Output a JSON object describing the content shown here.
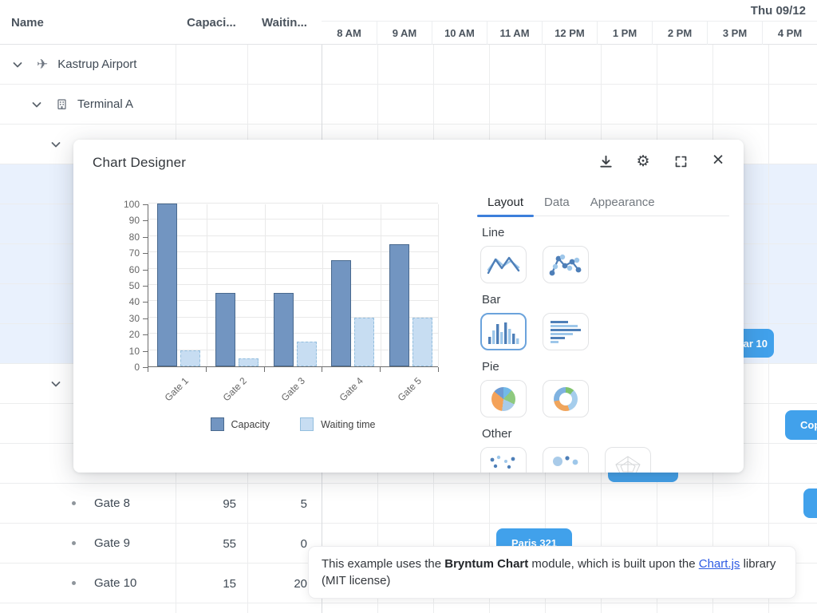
{
  "grid": {
    "columns": [
      {
        "label": "Name"
      },
      {
        "label": "Capaci..."
      },
      {
        "label": "Waitin..."
      }
    ],
    "timeline": {
      "date_label": "Thu 09/12",
      "hours": [
        "8 AM",
        "9 AM",
        "10 AM",
        "11 AM",
        "12 PM",
        "1 PM",
        "2 PM",
        "3 PM",
        "4 PM"
      ]
    },
    "rows": [
      {
        "type": "parent",
        "indent": 0,
        "icon": "airplane-icon",
        "name": "Kastrup Airport",
        "capacity": "",
        "waiting": "",
        "selected": false
      },
      {
        "type": "parent",
        "indent": 1,
        "icon": "building-icon",
        "name": "Terminal A",
        "capacity": "",
        "waiting": "",
        "selected": false
      },
      {
        "type": "parent",
        "indent": 2,
        "icon": "",
        "name": "",
        "capacity": "",
        "waiting": "",
        "selected": false
      },
      {
        "type": "leaf",
        "indent": 3,
        "icon": "",
        "name": "",
        "capacity": "",
        "waiting": "",
        "selected": true
      },
      {
        "type": "leaf",
        "indent": 3,
        "icon": "",
        "name": "",
        "capacity": "",
        "waiting": "",
        "selected": true
      },
      {
        "type": "leaf",
        "indent": 3,
        "icon": "",
        "name": "",
        "capacity": "",
        "waiting": "",
        "selected": true
      },
      {
        "type": "leaf",
        "indent": 3,
        "icon": "",
        "name": "",
        "capacity": "",
        "waiting": "",
        "selected": true
      },
      {
        "type": "leaf",
        "indent": 3,
        "icon": "",
        "name": "",
        "capacity": "",
        "waiting": "",
        "selected": true
      },
      {
        "type": "parent",
        "indent": 2,
        "icon": "",
        "name": "",
        "capacity": "",
        "waiting": "",
        "selected": false
      },
      {
        "type": "leaf",
        "indent": 3,
        "icon": "",
        "name": "",
        "capacity": "",
        "waiting": "",
        "selected": false
      },
      {
        "type": "leaf",
        "indent": 3,
        "icon": "",
        "name": "",
        "capacity": "",
        "waiting": "",
        "selected": false
      },
      {
        "type": "leaf",
        "indent": 3,
        "icon": "",
        "name": "Gate 8",
        "capacity": "95",
        "waiting": "5",
        "selected": false
      },
      {
        "type": "leaf",
        "indent": 3,
        "icon": "",
        "name": "Gate 9",
        "capacity": "55",
        "waiting": "0",
        "selected": false
      },
      {
        "type": "leaf",
        "indent": 3,
        "icon": "",
        "name": "Gate 10",
        "capacity": "15",
        "waiting": "20",
        "selected": false
      },
      {
        "type": "leaf",
        "indent": 3,
        "icon": "",
        "name": "",
        "capacity": "",
        "waiting": "",
        "selected": false
      }
    ]
  },
  "events": [
    {
      "label": "ar 10"
    },
    {
      "label": "Cope"
    },
    {
      "label": ""
    },
    {
      "label": ""
    },
    {
      "label": "Paris 321"
    }
  ],
  "event_color": "#41a1eb",
  "modal": {
    "title": "Chart Designer",
    "tools": [
      "download-icon",
      "gear-icon",
      "fullscreen-icon",
      "close-icon"
    ],
    "tabs": [
      "Layout",
      "Data",
      "Appearance"
    ],
    "active_tab": "Layout",
    "sections": [
      {
        "label": "Line",
        "items": [
          "line",
          "line-points"
        ]
      },
      {
        "label": "Bar",
        "items": [
          "bar-vertical",
          "bar-horizontal"
        ],
        "selected_item": "bar-vertical"
      },
      {
        "label": "Pie",
        "items": [
          "pie",
          "doughnut"
        ]
      },
      {
        "label": "Other",
        "items": [
          "scatter",
          "bubble",
          "radar"
        ]
      }
    ]
  },
  "chart_data": {
    "type": "bar",
    "categories": [
      "Gate 1",
      "Gate 2",
      "Gate 3",
      "Gate 4",
      "Gate 5"
    ],
    "series": [
      {
        "name": "Capacity",
        "values": [
          100,
          45,
          45,
          65,
          75
        ],
        "color": "#7295c1",
        "border": "#49698e",
        "border_style": "solid"
      },
      {
        "name": "Waiting time",
        "values": [
          10,
          5,
          15,
          30,
          30
        ],
        "color": "#c7ddf2",
        "border": "#93bede",
        "border_style": "dashed"
      }
    ],
    "title": "",
    "xlabel": "",
    "ylabel": "",
    "ylim": [
      0,
      100
    ],
    "ytick_step": 10,
    "grid": true,
    "legend_position": "bottom"
  },
  "footer": {
    "text_1": "This example uses the ",
    "bold": "Bryntum Chart",
    "text_2": " module, which is built upon the ",
    "link": "Chart.js",
    "text_3": " library (MIT license)"
  }
}
